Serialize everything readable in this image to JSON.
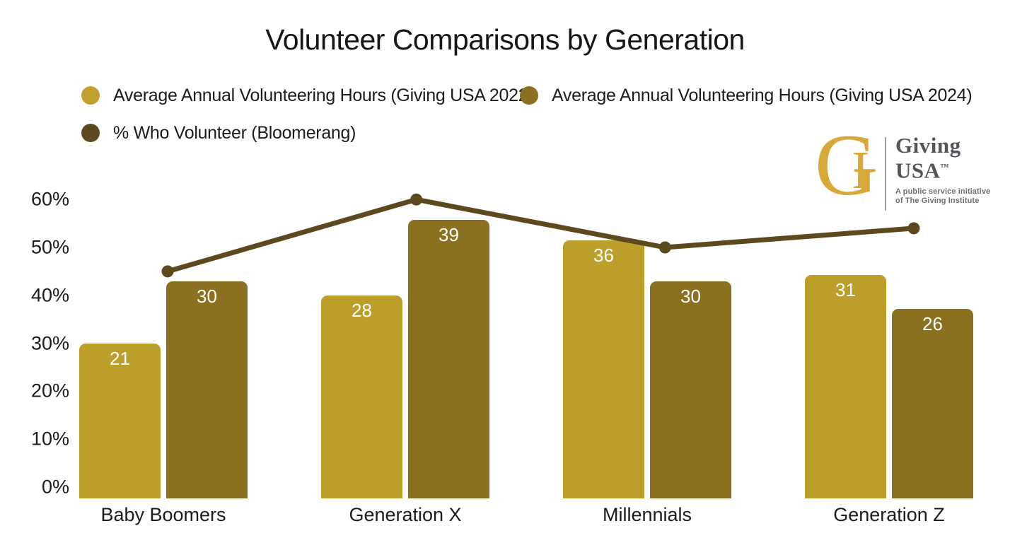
{
  "chart_data": {
    "type": "bar+line combo",
    "title": "Volunteer Comparisons by Generation",
    "categories": [
      "Baby Boomers",
      "Generation X",
      "Millennials",
      "Generation Z"
    ],
    "series": [
      {
        "name": "Average Annual Volunteering Hours (Giving USA 2022)",
        "type": "bar",
        "unit": "hours",
        "color": "#c1a02f",
        "bar_color": "#bc9e2b",
        "values": [
          21,
          28,
          36,
          31
        ]
      },
      {
        "name": "Average Annual Volunteering Hours (Giving USA 2024)",
        "type": "bar",
        "unit": "hours",
        "color": "#8b7020",
        "bar_color": "#8b7020",
        "values": [
          30,
          39,
          30,
          26
        ]
      },
      {
        "name": "% Who Volunteer (Bloomerang)",
        "type": "line",
        "unit": "percent",
        "color": "#5c4a1e",
        "values": [
          45,
          60,
          50,
          54
        ]
      }
    ],
    "y_axis": {
      "min": 0,
      "max": 60,
      "tick_labels": [
        "0%",
        "10%",
        "20%",
        "30%",
        "40%",
        "50%",
        "60%"
      ],
      "grid": false
    },
    "hidden_hours_axis": {
      "min": 0,
      "max": 42,
      "note": "bar heights drawn on hidden secondary axis sharing plot height with 0-60% axis"
    },
    "legend_position": "top-left, two rows",
    "bar_value_labels_shown": true,
    "line_value_labels_shown": false
  },
  "logo": {
    "monogram_g": "G",
    "monogram_i": "I",
    "name_line1": "Giving",
    "name_line2": "USA",
    "trademark": "™",
    "tagline_line1": "A public service initiative",
    "tagline_line2": "of The Giving Institute",
    "gold": "#d8a838",
    "gray": "#54555a"
  }
}
